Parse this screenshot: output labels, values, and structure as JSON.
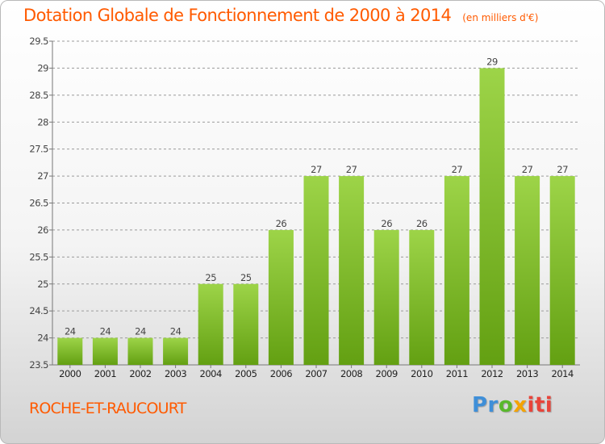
{
  "header": {
    "title": "Dotation Globale de Fonctionnement de 2000 à 2014",
    "subtitle": "(en milliers d'€)"
  },
  "footer": {
    "town": "ROCHE-ET-RAUCOURT",
    "brand_parts": [
      "Pr",
      "o",
      "x",
      "iti"
    ]
  },
  "colors": {
    "title": "#ff5a00",
    "bar_light": "#9dd448",
    "bar_dark": "#63a012",
    "grid": "#9a9a9a"
  },
  "chart_data": {
    "type": "bar",
    "title": "Dotation Globale de Fonctionnement de 2000 à 2014",
    "subtitle": "(en milliers d'€)",
    "xlabel": "",
    "ylabel": "",
    "categories": [
      "2000",
      "2001",
      "2002",
      "2003",
      "2004",
      "2005",
      "2006",
      "2007",
      "2008",
      "2009",
      "2010",
      "2011",
      "2012",
      "2013",
      "2014"
    ],
    "values": [
      24,
      24,
      24,
      24,
      25,
      25,
      26,
      27,
      27,
      26,
      26,
      27,
      29,
      27,
      27
    ],
    "data_labels": [
      "24",
      "24",
      "24",
      "24",
      "25",
      "25",
      "26",
      "27",
      "27",
      "26",
      "26",
      "27",
      "29",
      "27",
      "27"
    ],
    "ylim": [
      23.5,
      29.5
    ],
    "yticks": [
      23.5,
      24,
      24.5,
      25,
      25.5,
      26,
      26.5,
      27,
      27.5,
      28,
      28.5,
      29,
      29.5
    ],
    "ytick_labels": [
      "23.5",
      "24",
      "24.5",
      "25",
      "25.5",
      "26",
      "26.5",
      "27",
      "27.5",
      "28",
      "28.5",
      "29",
      "29.5"
    ],
    "grid": true,
    "grid_style": "dashed horizontal"
  }
}
